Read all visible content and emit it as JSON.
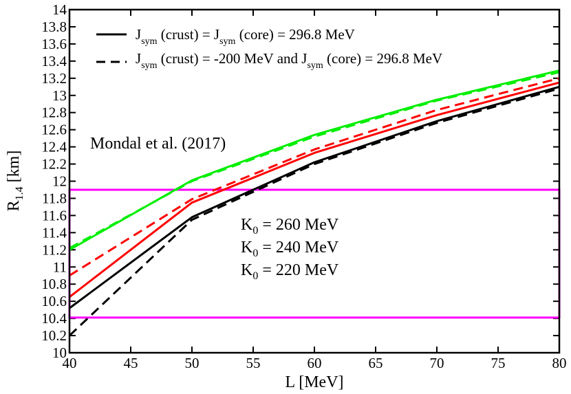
{
  "chart_data": {
    "type": "line",
    "xlabel": "L [MeV]",
    "ylabel": {
      "main": "R",
      "sub": "1.4",
      "unit": " [km]"
    },
    "xlim": [
      40,
      80
    ],
    "ylim": [
      10,
      14
    ],
    "xticks": [
      40,
      45,
      50,
      55,
      60,
      65,
      70,
      75,
      80
    ],
    "yticks": [
      10,
      10.2,
      10.4,
      10.6,
      10.8,
      11,
      11.2,
      11.4,
      11.6,
      11.8,
      12,
      12.2,
      12.4,
      12.6,
      12.8,
      13,
      13.2,
      13.4,
      13.6,
      13.8,
      14
    ],
    "x": [
      40,
      50,
      60,
      70,
      80
    ],
    "series": [
      {
        "name": "K0 = 260 MeV, Jsym(crust) = Jsym(core)",
        "color": "#00ee00",
        "dash": "solid",
        "values": [
          11.2,
          12.01,
          12.54,
          12.95,
          13.29
        ]
      },
      {
        "name": "K0 = 260 MeV, Jsym(crust) = -200 MeV",
        "color": "#00ee00",
        "dash": "dashed",
        "values": [
          11.22,
          12.0,
          12.52,
          12.94,
          13.27
        ]
      },
      {
        "name": "K0 = 240 MeV, Jsym(crust) = Jsym(core)",
        "color": "#ff0000",
        "dash": "solid",
        "values": [
          10.65,
          11.75,
          12.33,
          12.77,
          13.15
        ]
      },
      {
        "name": "K0 = 240 MeV, Jsym(crust) = -200 MeV",
        "color": "#ff0000",
        "dash": "dashed",
        "values": [
          10.9,
          11.79,
          12.37,
          12.83,
          13.2
        ]
      },
      {
        "name": "K0 = 220 MeV, Jsym(crust) = Jsym(core)",
        "color": "#000000",
        "dash": "solid",
        "values": [
          10.52,
          11.58,
          12.22,
          12.7,
          13.1
        ]
      },
      {
        "name": "K0 = 220 MeV, Jsym(crust) = -200 MeV",
        "color": "#000000",
        "dash": "dashed",
        "values": [
          10.2,
          11.55,
          12.2,
          12.68,
          13.08
        ]
      }
    ],
    "band": {
      "label": "Mondal et al. (2017)",
      "color": "#ff00ff",
      "ymin": 10.41,
      "ymax": 11.9,
      "xmin": 40,
      "xmax": 80
    },
    "annotation": "Mondal et al. (2017)",
    "legend": [
      {
        "dash": "solid",
        "p1": "J",
        "s1": "sym",
        "p2": " (crust) = J",
        "s2": "sym",
        "p3": " (core) = 296.8 MeV"
      },
      {
        "dash": "dashed",
        "p1": "J",
        "s1": "sym",
        "p2": " (crust) = -200 MeV and J",
        "s2": "sym",
        "p3": " (core) = 296.8 MeV"
      }
    ],
    "legend_position": "top-left",
    "k0_labels": [
      {
        "main": "K",
        "sub": "0",
        "rest": " = 260 MeV",
        "color": "#00ee00"
      },
      {
        "main": "K",
        "sub": "0",
        "rest": " = 240 MeV",
        "color": "#ff0000"
      },
      {
        "main": "K",
        "sub": "0",
        "rest": " = 220 MeV",
        "color": "#000000"
      }
    ]
  }
}
